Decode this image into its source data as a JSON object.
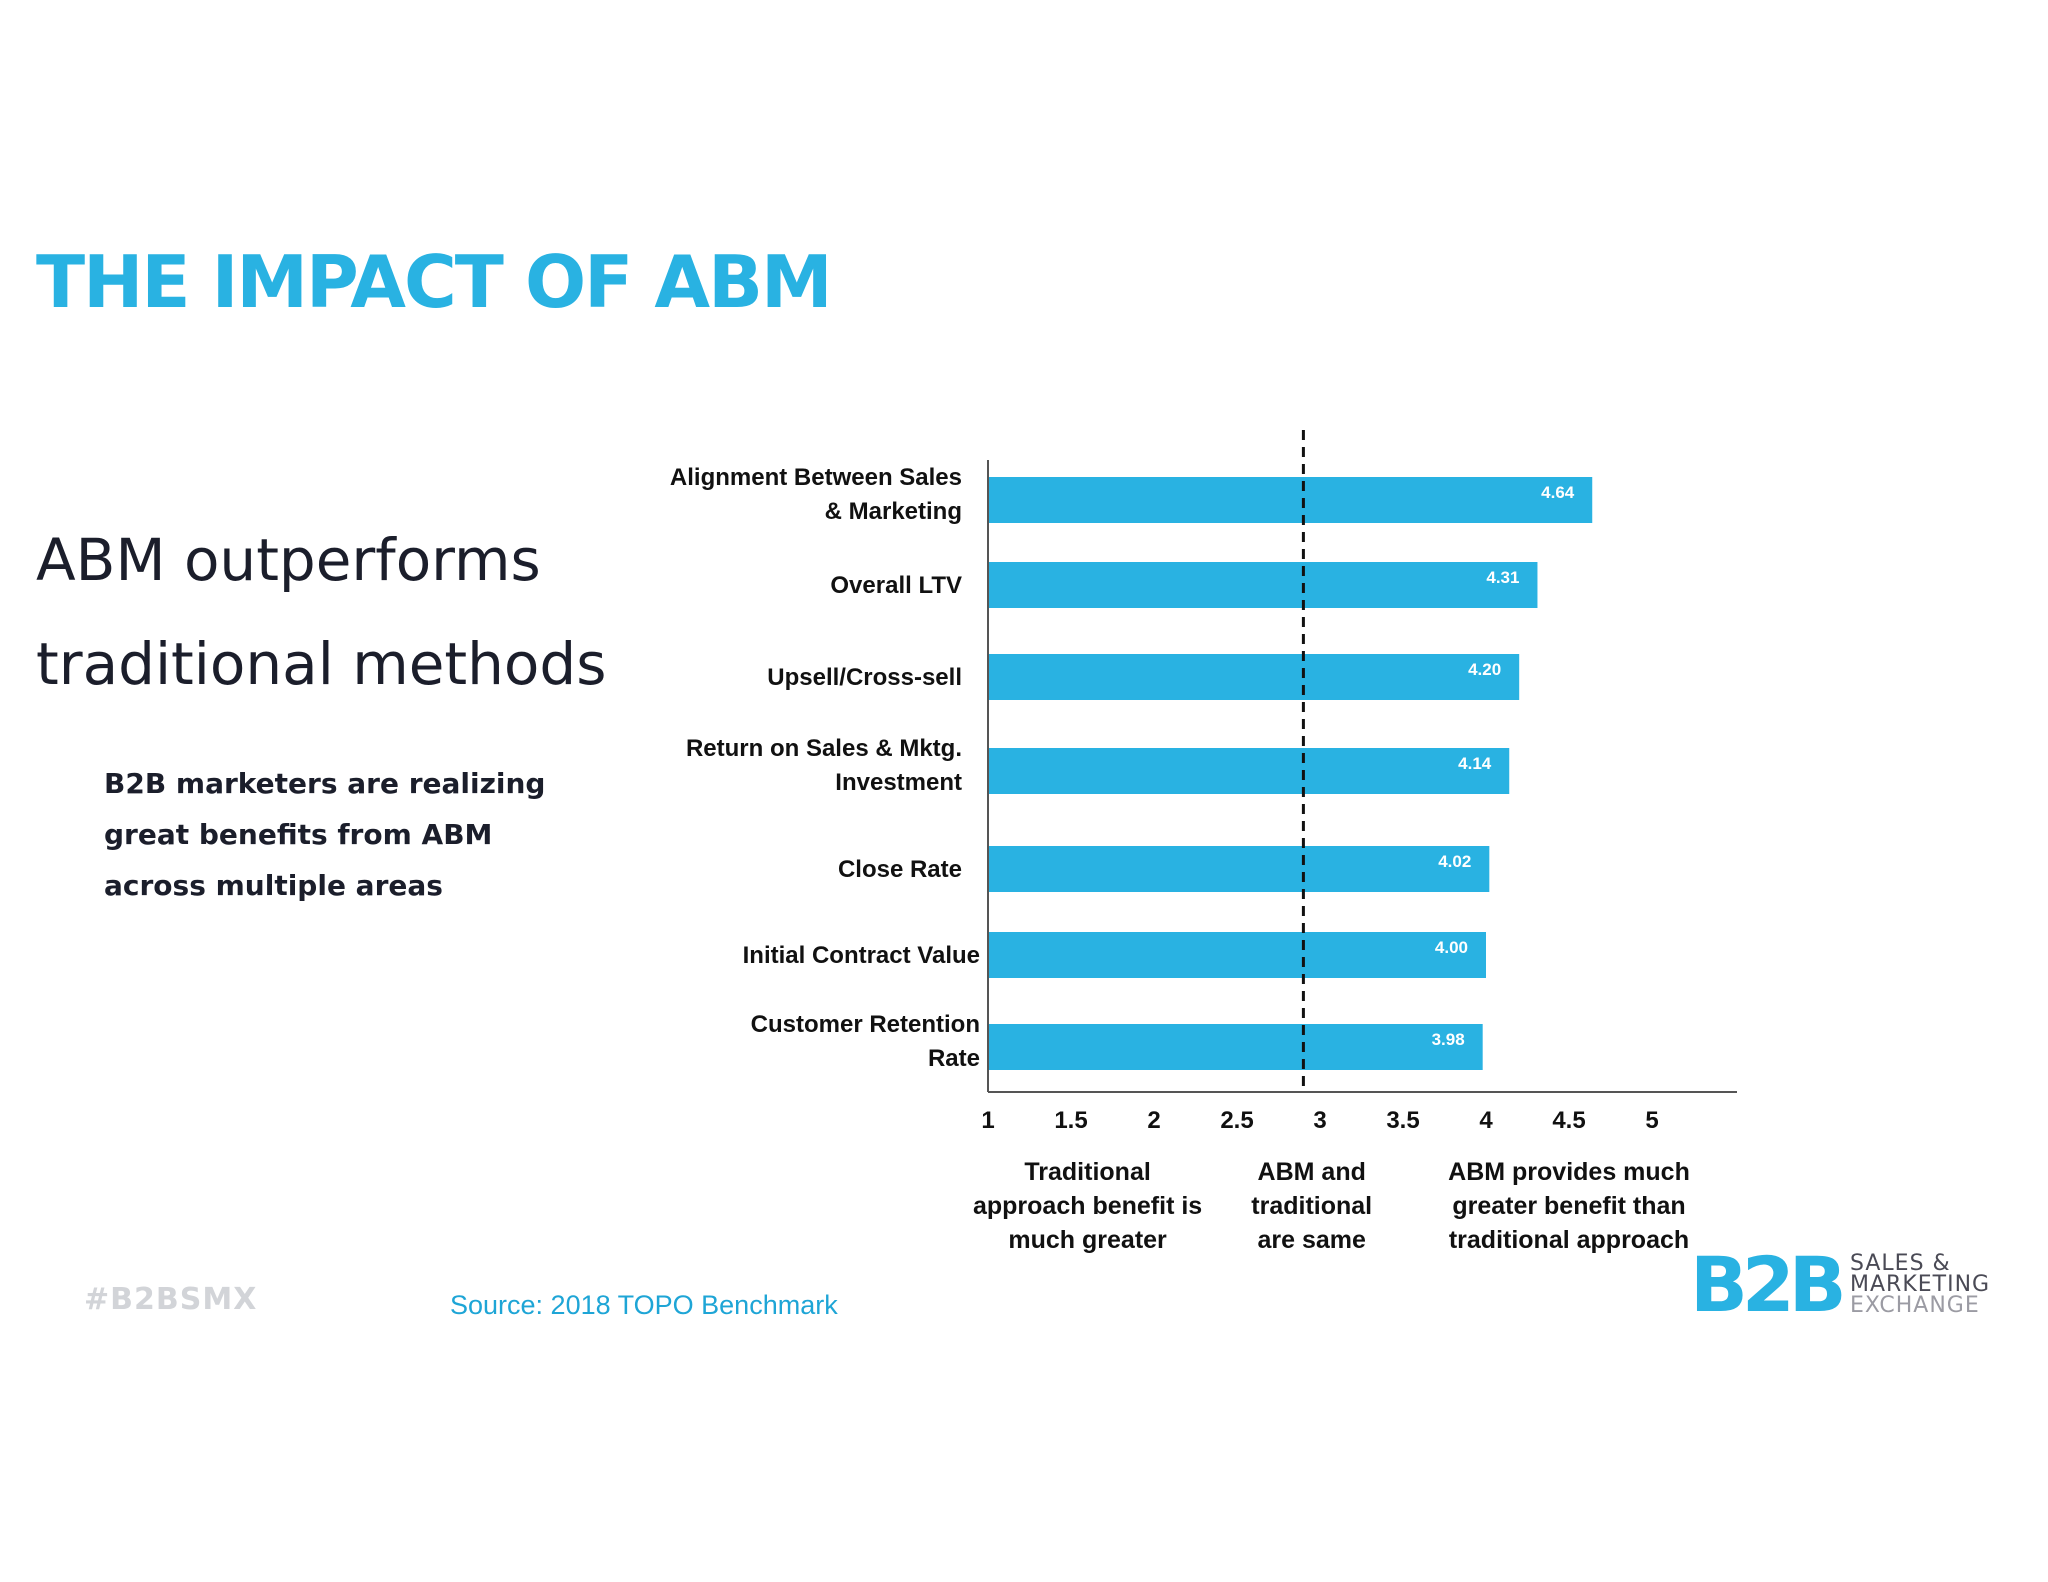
{
  "slide": {
    "title": "THE IMPACT OF ABM",
    "headline": "ABM outperforms traditional methods",
    "subtext": "B2B marketers are realizing great benefits from ABM across multiple areas",
    "hashtag": "#B2BSMX",
    "source": "Source: 2018 TOPO Benchmark",
    "logo": {
      "mark": "B2B",
      "line1": "SALES &",
      "line2": "MARKETING",
      "line3": "EXCHANGE"
    },
    "colors": {
      "accent": "#29b2e2",
      "bar": "#29b2e2",
      "text": "#1b1e2b"
    }
  },
  "chart_data": {
    "type": "bar",
    "orientation": "horizontal",
    "categories": [
      "Alignment Between Sales & Marketing",
      "Overall LTV",
      "Upsell/Cross-sell",
      "Return on Sales & Mktg. Investment",
      "Close Rate",
      "Initial Contract Value",
      "Customer Retention Rate"
    ],
    "category_lines": [
      [
        "Alignment Between Sales",
        "& Marketing"
      ],
      [
        "Overall LTV"
      ],
      [
        "Upsell/Cross-sell"
      ],
      [
        "Return on Sales & Mktg.",
        "Investment"
      ],
      [
        "Close Rate"
      ],
      [
        "Initial Contract Value"
      ],
      [
        "Customer Retention",
        "Rate"
      ]
    ],
    "values": [
      4.64,
      4.31,
      4.2,
      4.14,
      4.02,
      4.0,
      3.98
    ],
    "value_labels": [
      "4.64",
      "4.31",
      "4.20",
      "4.14",
      "4.02",
      "4.00",
      "3.98"
    ],
    "xlim": [
      1,
      5.5
    ],
    "xticks": [
      1,
      1.5,
      2,
      2.5,
      3,
      3.5,
      4,
      4.5,
      5
    ],
    "xtick_labels": [
      "1",
      "1.5",
      "2",
      "2.5",
      "3",
      "3.5",
      "4",
      "4.5",
      "5"
    ],
    "reference_line": 2.9,
    "zones": [
      {
        "lines": [
          "Traditional",
          "approach benefit is",
          "much greater"
        ],
        "center": 1.6
      },
      {
        "lines": [
          "ABM and",
          "traditional",
          "are same"
        ],
        "center": 2.95
      },
      {
        "lines": [
          "ABM provides much",
          "greater benefit than",
          "traditional approach"
        ],
        "center": 4.5
      }
    ],
    "grid": false,
    "legend": "none"
  }
}
